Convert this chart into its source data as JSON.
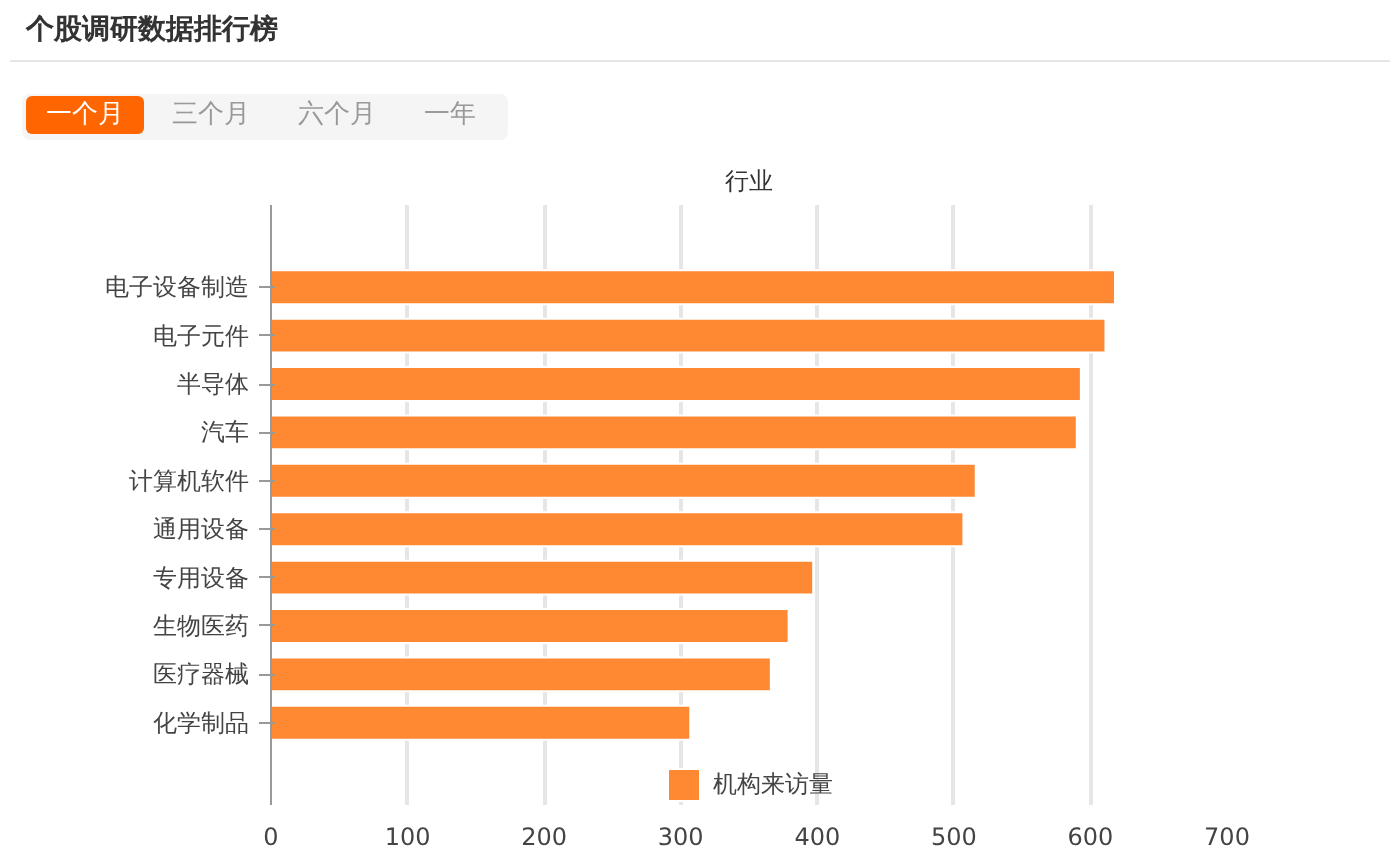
{
  "chart_data": {
    "type": "bar",
    "orientation": "horizontal",
    "title": "个股调研数据排行榜",
    "ylabel": "行业",
    "annotations": [
      "一个月",
      "三个月",
      "六个月",
      "一年"
    ],
    "categories": [
      "电子设备制造",
      "电子元件",
      "半导体",
      "汽车",
      "计算机软件",
      "通用设备",
      "专用设备",
      "生物医药",
      "医疗器械",
      "化学制品"
    ],
    "series": [
      {
        "name": "机构来访量",
        "color": "#ff8833",
        "values": [
          618,
          611,
          593,
          590,
          516,
          507,
          397,
          379,
          366,
          307
        ]
      }
    ],
    "xlim": [
      0,
      700
    ],
    "xticks": [
      0,
      100,
      200,
      300,
      400,
      500,
      600,
      700
    ],
    "grid": "x",
    "legend": "bottom"
  }
}
